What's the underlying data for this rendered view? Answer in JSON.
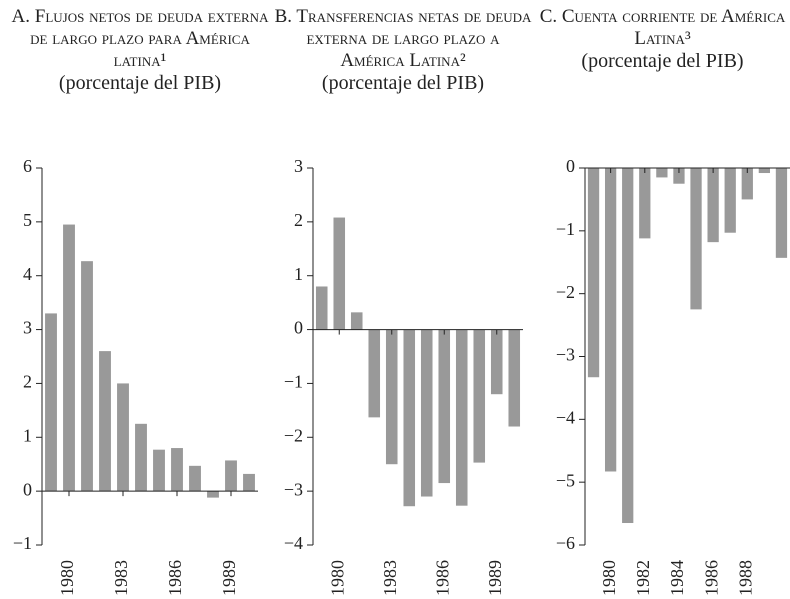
{
  "chart_data": [
    {
      "type": "bar",
      "title": "A. Flujos netos de deuda externa de largo plazo para América latina¹",
      "subtitle": "(porcentaje del PIB)",
      "categories": [
        null,
        "1980",
        null,
        null,
        "1983",
        null,
        null,
        "1986",
        null,
        null,
        "1989",
        null
      ],
      "values": [
        3.3,
        4.95,
        4.27,
        2.6,
        2.0,
        1.25,
        0.77,
        0.8,
        0.47,
        -0.12,
        0.57,
        0.32
      ],
      "color": "#999999",
      "ylim": [
        -1,
        6
      ],
      "yticks": [
        {
          "value": -1,
          "label": "−1"
        },
        0,
        1,
        2,
        3,
        4,
        5,
        6
      ],
      "grid": false
    },
    {
      "type": "bar",
      "title": "B. Transferencias netas de deuda externa de largo plazo a América Latina²",
      "subtitle": "(porcentaje del PIB)",
      "categories": [
        null,
        "1980",
        null,
        null,
        "1983",
        null,
        null,
        "1986",
        null,
        null,
        "1989",
        null
      ],
      "values": [
        0.8,
        2.08,
        0.32,
        -1.63,
        -2.5,
        -3.28,
        -3.1,
        -2.85,
        -3.27,
        -2.47,
        -1.2,
        -1.8
      ],
      "color": "#999999",
      "ylim": [
        -4,
        3
      ],
      "yticks": [
        {
          "value": -4,
          "label": "−4"
        },
        {
          "value": -3,
          "label": "−3"
        },
        {
          "value": -2,
          "label": "−2"
        },
        {
          "value": -1,
          "label": "−1"
        },
        0,
        1,
        2,
        3
      ],
      "grid": false
    },
    {
      "type": "bar",
      "title": "C. Cuenta corriente de América Latina³",
      "subtitle": "(porcentaje del PIB)",
      "categories": [
        null,
        "1980",
        null,
        "1982",
        null,
        "1984",
        null,
        "1986",
        null,
        "1988",
        null,
        null
      ],
      "values": [
        -3.33,
        -4.83,
        -5.65,
        -1.12,
        -0.15,
        -0.25,
        -2.25,
        -1.18,
        -1.03,
        -0.5,
        -0.08,
        -1.43
      ],
      "color": "#999999",
      "ylim": [
        -6,
        0
      ],
      "yticks": [
        {
          "value": -6,
          "label": "−6"
        },
        {
          "value": -5,
          "label": "−5"
        },
        {
          "value": -4,
          "label": "−4"
        },
        {
          "value": -3,
          "label": "−3"
        },
        {
          "value": -2,
          "label": "−2"
        },
        {
          "value": -1,
          "label": "−1"
        },
        0
      ],
      "grid": false
    }
  ]
}
